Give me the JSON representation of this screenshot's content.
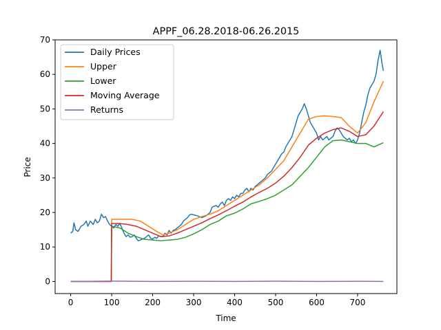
{
  "chart_data": {
    "type": "line",
    "title": "APPF_06.28.2018-06.26.2015",
    "xlabel": "Time",
    "ylabel": "Price",
    "xlim": [
      -38,
      796
    ],
    "ylim": [
      -3.5,
      70
    ],
    "xticks": [
      0,
      100,
      200,
      300,
      400,
      500,
      600,
      700
    ],
    "yticks": [
      0,
      10,
      20,
      30,
      40,
      50,
      60,
      70
    ],
    "grid": false,
    "legend": "top-left",
    "series": [
      {
        "name": "Daily Prices",
        "color": "#1f77b4",
        "points": [
          [
            0,
            14
          ],
          [
            5,
            14.5
          ],
          [
            8,
            17
          ],
          [
            12,
            15
          ],
          [
            18,
            14.5
          ],
          [
            25,
            16
          ],
          [
            32,
            16.5
          ],
          [
            38,
            17.5
          ],
          [
            42,
            16
          ],
          [
            48,
            17.5
          ],
          [
            55,
            16.5
          ],
          [
            60,
            18
          ],
          [
            65,
            17
          ],
          [
            70,
            17.5
          ],
          [
            75,
            19.5
          ],
          [
            80,
            18.5
          ],
          [
            85,
            18.8
          ],
          [
            90,
            17.5
          ],
          [
            95,
            16.5
          ],
          [
            100,
            16
          ],
          [
            105,
            15.5
          ],
          [
            110,
            16.5
          ],
          [
            115,
            16
          ],
          [
            120,
            16.8
          ],
          [
            125,
            15.5
          ],
          [
            130,
            14
          ],
          [
            135,
            13
          ],
          [
            140,
            13.5
          ],
          [
            145,
            12.8
          ],
          [
            150,
            13
          ],
          [
            155,
            13.5
          ],
          [
            160,
            12.5
          ],
          [
            165,
            11.8
          ],
          [
            170,
            12
          ],
          [
            175,
            12.3
          ],
          [
            180,
            12.5
          ],
          [
            185,
            13
          ],
          [
            190,
            13.5
          ],
          [
            195,
            12.5
          ],
          [
            200,
            12.3
          ],
          [
            205,
            12.8
          ],
          [
            210,
            12.5
          ],
          [
            215,
            13.2
          ],
          [
            220,
            13
          ],
          [
            225,
            13
          ],
          [
            230,
            14
          ],
          [
            235,
            13.5
          ],
          [
            240,
            14.8
          ],
          [
            245,
            14
          ],
          [
            250,
            14.8
          ],
          [
            255,
            15
          ],
          [
            260,
            15.5
          ],
          [
            265,
            16
          ],
          [
            270,
            16.5
          ],
          [
            275,
            17.5
          ],
          [
            280,
            18
          ],
          [
            285,
            18.5
          ],
          [
            290,
            19.3
          ],
          [
            295,
            19.5
          ],
          [
            300,
            19.3
          ],
          [
            310,
            19
          ],
          [
            320,
            18.5
          ],
          [
            330,
            19
          ],
          [
            340,
            20
          ],
          [
            345,
            21.5
          ],
          [
            350,
            21.8
          ],
          [
            355,
            22
          ],
          [
            360,
            21.5
          ],
          [
            365,
            22.5
          ],
          [
            370,
            23
          ],
          [
            375,
            22
          ],
          [
            380,
            23.5
          ],
          [
            385,
            24
          ],
          [
            390,
            23.5
          ],
          [
            395,
            24.5
          ],
          [
            400,
            24
          ],
          [
            405,
            25
          ],
          [
            410,
            24.5
          ],
          [
            415,
            25.5
          ],
          [
            420,
            25.5
          ],
          [
            425,
            26.5
          ],
          [
            430,
            27
          ],
          [
            435,
            26
          ],
          [
            440,
            27
          ],
          [
            445,
            26.5
          ],
          [
            450,
            27.5
          ],
          [
            455,
            28
          ],
          [
            460,
            28.5
          ],
          [
            465,
            29
          ],
          [
            470,
            29.5
          ],
          [
            475,
            30
          ],
          [
            480,
            31
          ],
          [
            485,
            31.5
          ],
          [
            490,
            32
          ],
          [
            495,
            33
          ],
          [
            500,
            34
          ],
          [
            505,
            35
          ],
          [
            510,
            36
          ],
          [
            515,
            37
          ],
          [
            520,
            37.5
          ],
          [
            525,
            39
          ],
          [
            530,
            40
          ],
          [
            535,
            41
          ],
          [
            540,
            42
          ],
          [
            545,
            44
          ],
          [
            550,
            46
          ],
          [
            555,
            48
          ],
          [
            560,
            49
          ],
          [
            565,
            50
          ],
          [
            570,
            51.5
          ],
          [
            575,
            50
          ],
          [
            580,
            48
          ],
          [
            585,
            46
          ],
          [
            590,
            45
          ],
          [
            595,
            44
          ],
          [
            600,
            43
          ],
          [
            605,
            41
          ],
          [
            610,
            42
          ],
          [
            615,
            41
          ],
          [
            620,
            41.5
          ],
          [
            625,
            42
          ],
          [
            630,
            41
          ],
          [
            635,
            41.5
          ],
          [
            640,
            42
          ],
          [
            645,
            43.5
          ],
          [
            650,
            44.5
          ],
          [
            655,
            44
          ],
          [
            660,
            43
          ],
          [
            665,
            42
          ],
          [
            670,
            41.5
          ],
          [
            675,
            41
          ],
          [
            680,
            41.5
          ],
          [
            685,
            40.5
          ],
          [
            690,
            41
          ],
          [
            695,
            40
          ],
          [
            700,
            41
          ],
          [
            705,
            43
          ],
          [
            710,
            46
          ],
          [
            715,
            49
          ],
          [
            720,
            51
          ],
          [
            725,
            54
          ],
          [
            730,
            56
          ],
          [
            735,
            57
          ],
          [
            740,
            58
          ],
          [
            745,
            60
          ],
          [
            750,
            64
          ],
          [
            755,
            67
          ],
          [
            760,
            63
          ],
          [
            763,
            61
          ]
        ]
      },
      {
        "name": "Upper",
        "color": "#ff7f0e",
        "points": [
          [
            0,
            0
          ],
          [
            99,
            0
          ],
          [
            100,
            18
          ],
          [
            120,
            18
          ],
          [
            150,
            18
          ],
          [
            170,
            17.5
          ],
          [
            190,
            16
          ],
          [
            210,
            14.5
          ],
          [
            225,
            13.5
          ],
          [
            240,
            14
          ],
          [
            260,
            15
          ],
          [
            280,
            16.5
          ],
          [
            300,
            18
          ],
          [
            320,
            18.8
          ],
          [
            340,
            19.5
          ],
          [
            360,
            20.5
          ],
          [
            380,
            22
          ],
          [
            400,
            23.5
          ],
          [
            420,
            25
          ],
          [
            440,
            26.5
          ],
          [
            460,
            28
          ],
          [
            480,
            30
          ],
          [
            500,
            32.5
          ],
          [
            520,
            35
          ],
          [
            540,
            39
          ],
          [
            560,
            43
          ],
          [
            580,
            47
          ],
          [
            600,
            47.8
          ],
          [
            620,
            48
          ],
          [
            640,
            47.8
          ],
          [
            660,
            47.5
          ],
          [
            680,
            45
          ],
          [
            700,
            43
          ],
          [
            720,
            46
          ],
          [
            740,
            52
          ],
          [
            763,
            58
          ]
        ]
      },
      {
        "name": "Lower",
        "color": "#2ca02c",
        "points": [
          [
            0,
            0
          ],
          [
            99,
            0
          ],
          [
            100,
            16
          ],
          [
            120,
            15.5
          ],
          [
            140,
            14
          ],
          [
            160,
            13
          ],
          [
            180,
            12.2
          ],
          [
            200,
            12
          ],
          [
            220,
            11.8
          ],
          [
            240,
            12
          ],
          [
            260,
            12.2
          ],
          [
            280,
            12.8
          ],
          [
            300,
            13.8
          ],
          [
            320,
            15
          ],
          [
            340,
            16.5
          ],
          [
            360,
            17.5
          ],
          [
            380,
            19
          ],
          [
            400,
            19.8
          ],
          [
            420,
            21
          ],
          [
            440,
            22.5
          ],
          [
            460,
            23.2
          ],
          [
            480,
            24
          ],
          [
            500,
            25
          ],
          [
            520,
            26.5
          ],
          [
            540,
            28
          ],
          [
            560,
            30.5
          ],
          [
            580,
            33
          ],
          [
            600,
            36
          ],
          [
            620,
            39
          ],
          [
            640,
            40.8
          ],
          [
            660,
            41
          ],
          [
            680,
            40.5
          ],
          [
            700,
            40
          ],
          [
            720,
            40
          ],
          [
            740,
            39
          ],
          [
            763,
            40.2
          ]
        ]
      },
      {
        "name": "Moving Average",
        "color": "#d62728",
        "points": [
          [
            0,
            0
          ],
          [
            99,
            0
          ],
          [
            100,
            16.8
          ],
          [
            120,
            16.8
          ],
          [
            140,
            16.5
          ],
          [
            160,
            16
          ],
          [
            180,
            15
          ],
          [
            200,
            14
          ],
          [
            220,
            13
          ],
          [
            240,
            13.2
          ],
          [
            260,
            14
          ],
          [
            280,
            15
          ],
          [
            300,
            16
          ],
          [
            320,
            17
          ],
          [
            340,
            18.2
          ],
          [
            360,
            19.3
          ],
          [
            380,
            20.5
          ],
          [
            400,
            21.8
          ],
          [
            420,
            23
          ],
          [
            440,
            24.5
          ],
          [
            460,
            25.8
          ],
          [
            480,
            27
          ],
          [
            500,
            28.5
          ],
          [
            520,
            30.5
          ],
          [
            540,
            33
          ],
          [
            560,
            36
          ],
          [
            580,
            39.5
          ],
          [
            600,
            41.5
          ],
          [
            620,
            43
          ],
          [
            640,
            44
          ],
          [
            660,
            44.5
          ],
          [
            680,
            43.5
          ],
          [
            700,
            42
          ],
          [
            720,
            42.5
          ],
          [
            740,
            45
          ],
          [
            763,
            49.2
          ]
        ]
      },
      {
        "name": "Returns",
        "color": "#9467bd",
        "points": [
          [
            0,
            0
          ],
          [
            100,
            0.1
          ],
          [
            200,
            0
          ],
          [
            300,
            0.05
          ],
          [
            400,
            0
          ],
          [
            500,
            0.08
          ],
          [
            600,
            0
          ],
          [
            700,
            0.05
          ],
          [
            763,
            0
          ]
        ]
      }
    ]
  }
}
